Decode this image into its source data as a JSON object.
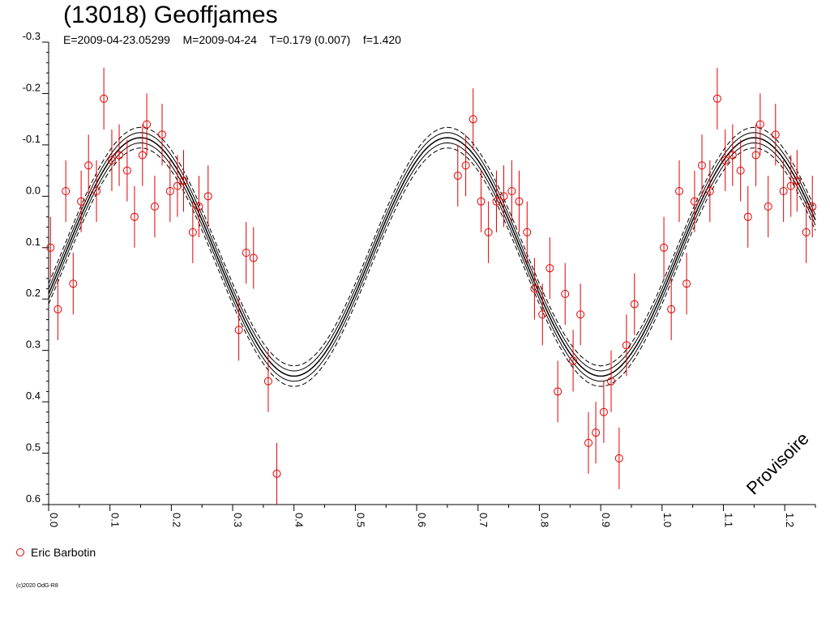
{
  "chart_data": {
    "type": "scatter",
    "title": "(13018) Geoffjames",
    "subtitle": "E=2009-04-23.05299    M=2009-04-24    T=0.179 (0.007)    f=1.420",
    "watermark": "Provisoire",
    "copyright": "(c)2020 OdG-R8",
    "xlim": [
      0,
      1.25
    ],
    "ylim": [
      -0.3,
      0.6
    ],
    "y_inverted": true,
    "x_ticks": [
      "0.0",
      "0.1",
      "0.2",
      "0.3",
      "0.4",
      "0.5",
      "0.6",
      "0.7",
      "0.8",
      "0.9",
      "1.0",
      "1.1",
      "1.2"
    ],
    "y_ticks": [
      "-0.3",
      "-0.2",
      "-0.1",
      "0.0",
      "0.1",
      "0.2",
      "0.3",
      "0.4",
      "0.5",
      "0.6"
    ],
    "fit": {
      "mean": 0.118,
      "amplitude": 0.232,
      "peak_phase": 0.15,
      "band": 0.02
    },
    "series": [
      {
        "name": "Eric Barbotin",
        "color": "#e00000",
        "marker": "open-circle",
        "error": 0.06,
        "points": [
          [
            0.003,
            0.1
          ],
          [
            0.015,
            0.22
          ],
          [
            0.028,
            -0.01
          ],
          [
            0.04,
            0.17
          ],
          [
            0.053,
            0.01
          ],
          [
            0.065,
            -0.06
          ],
          [
            0.078,
            -0.01
          ],
          [
            0.09,
            -0.19
          ],
          [
            0.103,
            -0.07
          ],
          [
            0.115,
            -0.08
          ],
          [
            0.128,
            -0.05
          ],
          [
            0.14,
            0.04
          ],
          [
            0.153,
            -0.08
          ],
          [
            0.16,
            -0.14
          ],
          [
            0.173,
            0.02
          ],
          [
            0.185,
            -0.12
          ],
          [
            0.198,
            -0.01
          ],
          [
            0.21,
            -0.02
          ],
          [
            0.22,
            -0.03
          ],
          [
            0.235,
            0.07
          ],
          [
            0.245,
            0.02
          ],
          [
            0.26,
            0.0
          ],
          [
            0.31,
            0.26
          ],
          [
            0.322,
            0.11
          ],
          [
            0.334,
            0.12
          ],
          [
            0.358,
            0.36
          ],
          [
            0.372,
            0.54
          ],
          [
            0.667,
            -0.04
          ],
          [
            0.68,
            -0.06
          ],
          [
            0.692,
            -0.15
          ],
          [
            0.705,
            0.01
          ],
          [
            0.717,
            0.07
          ],
          [
            0.73,
            0.01
          ],
          [
            0.742,
            0.0
          ],
          [
            0.755,
            -0.01
          ],
          [
            0.767,
            0.01
          ],
          [
            0.78,
            0.07
          ],
          [
            0.792,
            0.18
          ],
          [
            0.805,
            0.23
          ],
          [
            0.817,
            0.14
          ],
          [
            0.83,
            0.38
          ],
          [
            0.842,
            0.19
          ],
          [
            0.855,
            0.32
          ],
          [
            0.867,
            0.23
          ],
          [
            0.88,
            0.48
          ],
          [
            0.892,
            0.46
          ],
          [
            0.905,
            0.42
          ],
          [
            0.917,
            0.36
          ],
          [
            0.93,
            0.51
          ],
          [
            0.942,
            0.29
          ],
          [
            0.955,
            0.21
          ],
          [
            1.003,
            0.1
          ],
          [
            1.015,
            0.22
          ],
          [
            1.028,
            -0.01
          ],
          [
            1.04,
            0.17
          ],
          [
            1.053,
            0.01
          ],
          [
            1.065,
            -0.06
          ],
          [
            1.078,
            -0.01
          ],
          [
            1.09,
            -0.19
          ],
          [
            1.103,
            -0.07
          ],
          [
            1.115,
            -0.08
          ],
          [
            1.128,
            -0.05
          ],
          [
            1.14,
            0.04
          ],
          [
            1.153,
            -0.08
          ],
          [
            1.16,
            -0.14
          ],
          [
            1.173,
            0.02
          ],
          [
            1.185,
            -0.12
          ],
          [
            1.198,
            -0.01
          ],
          [
            1.21,
            -0.02
          ],
          [
            1.22,
            -0.03
          ],
          [
            1.235,
            0.07
          ],
          [
            1.245,
            0.02
          ]
        ]
      }
    ]
  }
}
